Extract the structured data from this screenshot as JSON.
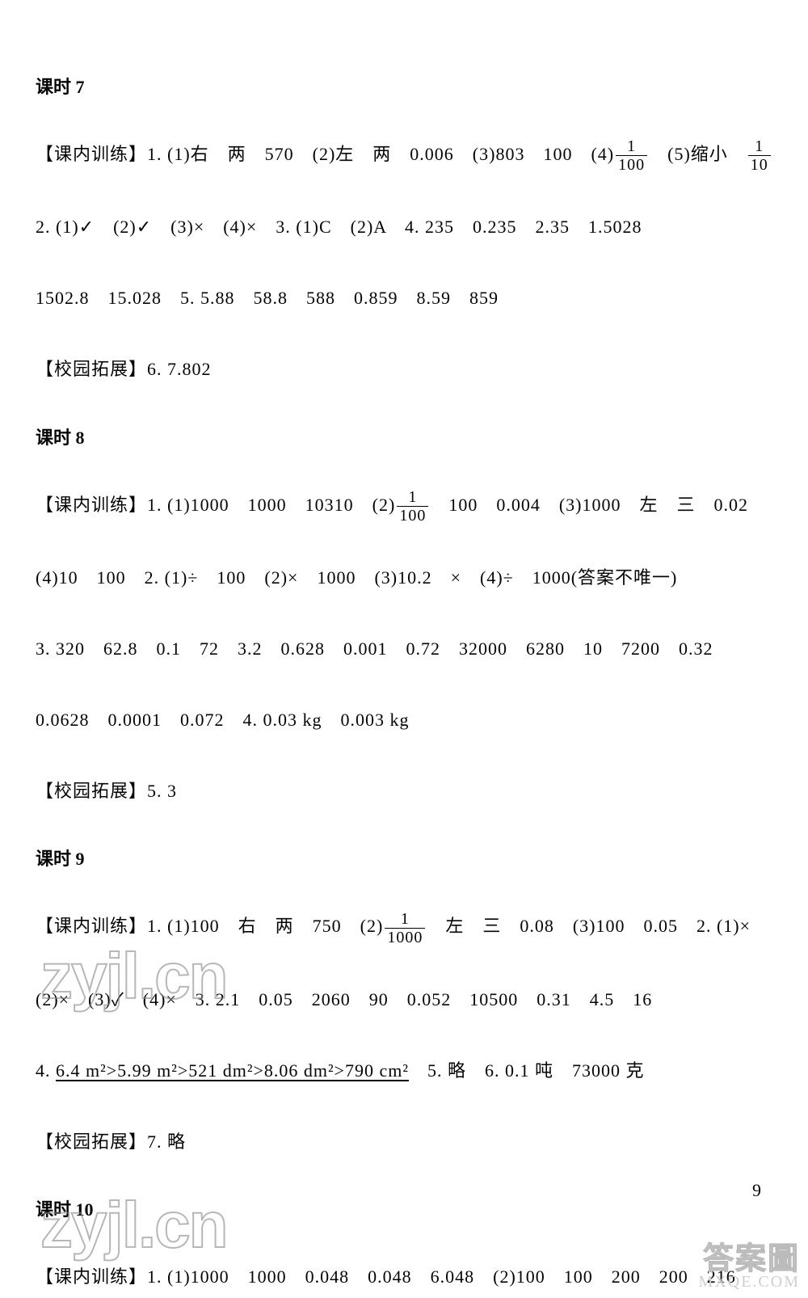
{
  "lesson7": {
    "title": "课时 7",
    "l1a": "【课内训练】1. (1)右　两　570　(2)左　两　0.006　(3)803　100　(4)",
    "frac1_num": "1",
    "frac1_den": "100",
    "l1b": "　(5)缩小　",
    "frac2_num": "1",
    "frac2_den": "10",
    "l2": "2. (1)✓　(2)✓　(3)×　(4)×　3. (1)C　(2)A　4. 235　0.235　2.35　1.5028",
    "l3": "1502.8　15.028　5. 5.88　58.8　588　0.859　8.59　859",
    "l4": "【校园拓展】6. 7.802"
  },
  "lesson8": {
    "title": "课时 8",
    "l1a": "【课内训练】1. (1)1000　1000　10310　(2)",
    "frac_num": "1",
    "frac_den": "100",
    "l1b": "　100　0.004　(3)1000　左　三　0.02",
    "l2": "(4)10　100　2. (1)÷　100　(2)×　1000　(3)10.2　×　(4)÷　1000(答案不唯一)",
    "l3": "3. 320　62.8　0.1　72　3.2　0.628　0.001　0.72　32000　6280　10　7200　0.32",
    "l4": "0.0628　0.0001　0.072　4. 0.03 kg　0.003 kg",
    "l5": "【校园拓展】5. 3"
  },
  "lesson9": {
    "title": "课时 9",
    "l1a": "【课内训练】1. (1)100　右　两　750　(2)",
    "frac_num": "1",
    "frac_den": "1000",
    "l1b": "　左　三　0.08　(3)100　0.05　2. (1)×",
    "l2": "(2)×　(3)✓　(4)×　3. 2.1　0.05　2060　90　0.052　10500　0.31　4.5　16",
    "l3a": "4. ",
    "l3b": "6.4 m²>5.99 m²>521 dm²>8.06 dm²>790 cm²",
    "l3c": "　5. 略　6. 0.1 吨　73000 克",
    "l4": "【校园拓展】7. 略"
  },
  "lesson10": {
    "title": "课时 10",
    "l1": "【课内训练】1. (1)1000　1000　0.048　0.048　6.048　(2)100　100　200　200　216"
  },
  "page_number": "9",
  "watermark_text": "zyjl.cn",
  "corner_cn": "答案圖",
  "corner_en": "MXQE.COM"
}
